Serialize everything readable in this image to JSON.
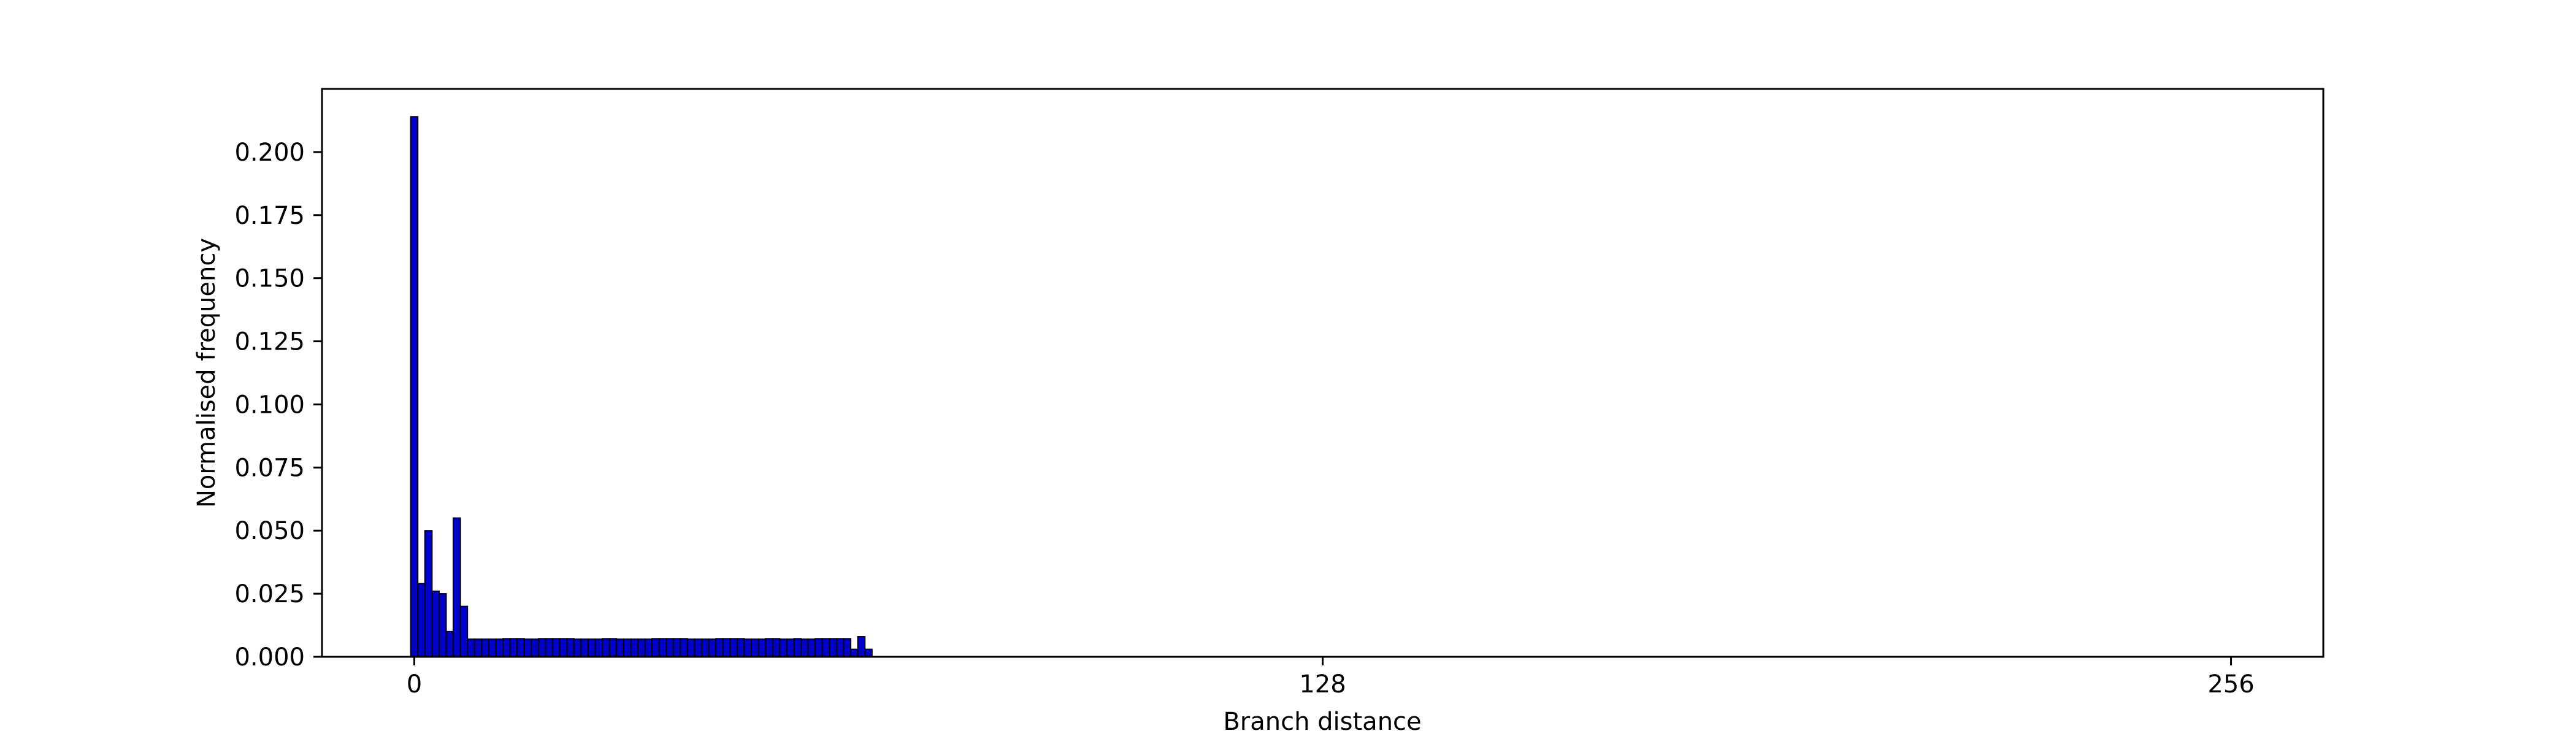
{
  "chart_data": {
    "type": "bar",
    "title": "",
    "xlabel": "Branch distance",
    "ylabel": "Normalised frequency",
    "xlim": [
      -13,
      269
    ],
    "ylim": [
      0,
      0.225
    ],
    "x_ticks": [
      0,
      128,
      256
    ],
    "x_tick_labels": [
      "0",
      "128",
      "256"
    ],
    "y_ticks": [
      0,
      0.025,
      0.05,
      0.075,
      0.1,
      0.125,
      0.15,
      0.175,
      0.2
    ],
    "y_tick_labels": [
      "0.000",
      "0.025",
      "0.050",
      "0.075",
      "0.100",
      "0.125",
      "0.150",
      "0.175",
      "0.200"
    ],
    "grid": false,
    "legend": false,
    "bar_color": "#0000cc",
    "edge_color": "#000000",
    "bin_width": 1,
    "x": [
      0,
      1,
      2,
      3,
      4,
      5,
      6,
      7,
      8,
      9,
      10,
      11,
      12,
      13,
      14,
      15,
      16,
      17,
      18,
      19,
      20,
      21,
      22,
      23,
      24,
      25,
      26,
      27,
      28,
      29,
      30,
      31,
      32,
      33,
      34,
      35,
      36,
      37,
      38,
      39,
      40,
      41,
      42,
      43,
      44,
      45,
      46,
      47,
      48,
      49,
      50,
      51,
      52,
      53,
      54,
      55,
      56,
      57,
      58,
      59,
      60,
      61,
      62,
      63,
      64
    ],
    "values": [
      0.214,
      0.029,
      0.05,
      0.026,
      0.025,
      0.01,
      0.055,
      0.02,
      0.007,
      0.007,
      0.007,
      0.007,
      0.007,
      0.0072,
      0.0072,
      0.0072,
      0.007,
      0.007,
      0.0072,
      0.0072,
      0.0072,
      0.0072,
      0.0072,
      0.007,
      0.007,
      0.007,
      0.007,
      0.0072,
      0.0072,
      0.007,
      0.007,
      0.007,
      0.007,
      0.007,
      0.0072,
      0.0072,
      0.0072,
      0.0072,
      0.0072,
      0.007,
      0.007,
      0.007,
      0.007,
      0.0072,
      0.0072,
      0.0072,
      0.0072,
      0.007,
      0.007,
      0.007,
      0.0072,
      0.0072,
      0.007,
      0.007,
      0.0072,
      0.007,
      0.007,
      0.0072,
      0.0072,
      0.0072,
      0.0072,
      0.0072,
      0.003,
      0.008,
      0.003
    ]
  }
}
